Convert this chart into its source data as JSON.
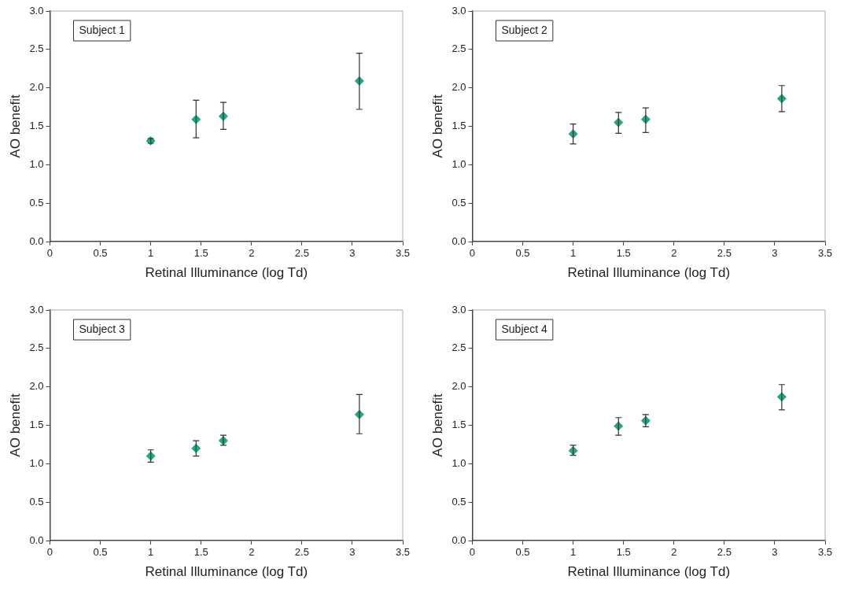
{
  "chart_data": [
    {
      "type": "scatter",
      "title": "Subject 1",
      "xlabel": "Retinal Illuminance (log Td)",
      "ylabel": "AO benefit",
      "marker": "diamond",
      "grid": false,
      "legend": false,
      "xlim": [
        0,
        3.5
      ],
      "xticks": [
        0,
        0.5,
        1,
        1.5,
        2,
        2.5,
        3,
        3.5
      ],
      "ylim": [
        0,
        3
      ],
      "yticks": [
        {
          "value": 0,
          "label": "0.0"
        },
        {
          "value": 0.5,
          "label": "0.5"
        },
        {
          "value": 1,
          "label": "1.0"
        },
        {
          "value": 1.5,
          "label": "1.5"
        },
        {
          "value": 2,
          "label": "2.0"
        },
        {
          "value": 2.5,
          "label": "2.5"
        },
        {
          "value": 3,
          "label": "3.0"
        }
      ],
      "series": [
        {
          "color": "#1fa884",
          "x": [
            1.0,
            1.45,
            1.72,
            3.07
          ],
          "values": [
            1.31,
            1.59,
            1.63,
            2.09
          ],
          "errors": [
            [
              1.28,
              1.34
            ],
            [
              1.35,
              1.84
            ],
            [
              1.46,
              1.81
            ],
            [
              1.72,
              2.45
            ]
          ]
        }
      ]
    },
    {
      "type": "scatter",
      "title": "Subject 2",
      "xlabel": "Retinal Illuminance (log Td)",
      "ylabel": "AO benefit",
      "marker": "diamond",
      "grid": false,
      "legend": false,
      "xlim": [
        0,
        3.5
      ],
      "xticks": [
        0,
        0.5,
        1,
        1.5,
        2,
        2.5,
        3,
        3.5
      ],
      "ylim": [
        0,
        3
      ],
      "yticks": [
        {
          "value": 0,
          "label": "0.0"
        },
        {
          "value": 0.5,
          "label": "0.5"
        },
        {
          "value": 1,
          "label": "1.0"
        },
        {
          "value": 1.5,
          "label": "1.5"
        },
        {
          "value": 2,
          "label": "2.0"
        },
        {
          "value": 2.5,
          "label": "2.5"
        },
        {
          "value": 3,
          "label": "3.0"
        }
      ],
      "series": [
        {
          "color": "#1fa884",
          "x": [
            1.0,
            1.45,
            1.72,
            3.07
          ],
          "values": [
            1.4,
            1.55,
            1.59,
            1.86
          ],
          "errors": [
            [
              1.27,
              1.53
            ],
            [
              1.41,
              1.68
            ],
            [
              1.42,
              1.74
            ],
            [
              1.69,
              2.03
            ]
          ]
        }
      ]
    },
    {
      "type": "scatter",
      "title": "Subject 3",
      "xlabel": "Retinal Illuminance (log Td)",
      "ylabel": "AO benefit",
      "marker": "diamond",
      "grid": false,
      "legend": false,
      "xlim": [
        0,
        3.5
      ],
      "xticks": [
        0,
        0.5,
        1,
        1.5,
        2,
        2.5,
        3,
        3.5
      ],
      "ylim": [
        0,
        3
      ],
      "yticks": [
        {
          "value": 0,
          "label": "0.0"
        },
        {
          "value": 0.5,
          "label": "0.5"
        },
        {
          "value": 1,
          "label": "1.0"
        },
        {
          "value": 1.5,
          "label": "1.5"
        },
        {
          "value": 2,
          "label": "2.0"
        },
        {
          "value": 2.5,
          "label": "2.5"
        },
        {
          "value": 3,
          "label": "3.0"
        }
      ],
      "series": [
        {
          "color": "#1fa884",
          "x": [
            1.0,
            1.45,
            1.72,
            3.07
          ],
          "values": [
            1.1,
            1.2,
            1.3,
            1.64
          ],
          "errors": [
            [
              1.02,
              1.18
            ],
            [
              1.1,
              1.3
            ],
            [
              1.24,
              1.37
            ],
            [
              1.39,
              1.9
            ]
          ]
        }
      ]
    },
    {
      "type": "scatter",
      "title": "Subject 4",
      "xlabel": "Retinal Illuminance (log Td)",
      "ylabel": "AO benefit",
      "marker": "diamond",
      "grid": false,
      "legend": false,
      "xlim": [
        0,
        3.5
      ],
      "xticks": [
        0,
        0.5,
        1,
        1.5,
        2,
        2.5,
        3,
        3.5
      ],
      "ylim": [
        0,
        3
      ],
      "yticks": [
        {
          "value": 0,
          "label": "0.0"
        },
        {
          "value": 0.5,
          "label": "0.5"
        },
        {
          "value": 1,
          "label": "1.0"
        },
        {
          "value": 1.5,
          "label": "1.5"
        },
        {
          "value": 2,
          "label": "2.0"
        },
        {
          "value": 2.5,
          "label": "2.5"
        },
        {
          "value": 3,
          "label": "3.0"
        }
      ],
      "series": [
        {
          "color": "#1fa884",
          "x": [
            1.0,
            1.45,
            1.72,
            3.07
          ],
          "values": [
            1.17,
            1.49,
            1.56,
            1.87
          ],
          "errors": [
            [
              1.11,
              1.24
            ],
            [
              1.37,
              1.6
            ],
            [
              1.48,
              1.64
            ],
            [
              1.7,
              2.03
            ]
          ]
        }
      ]
    }
  ]
}
